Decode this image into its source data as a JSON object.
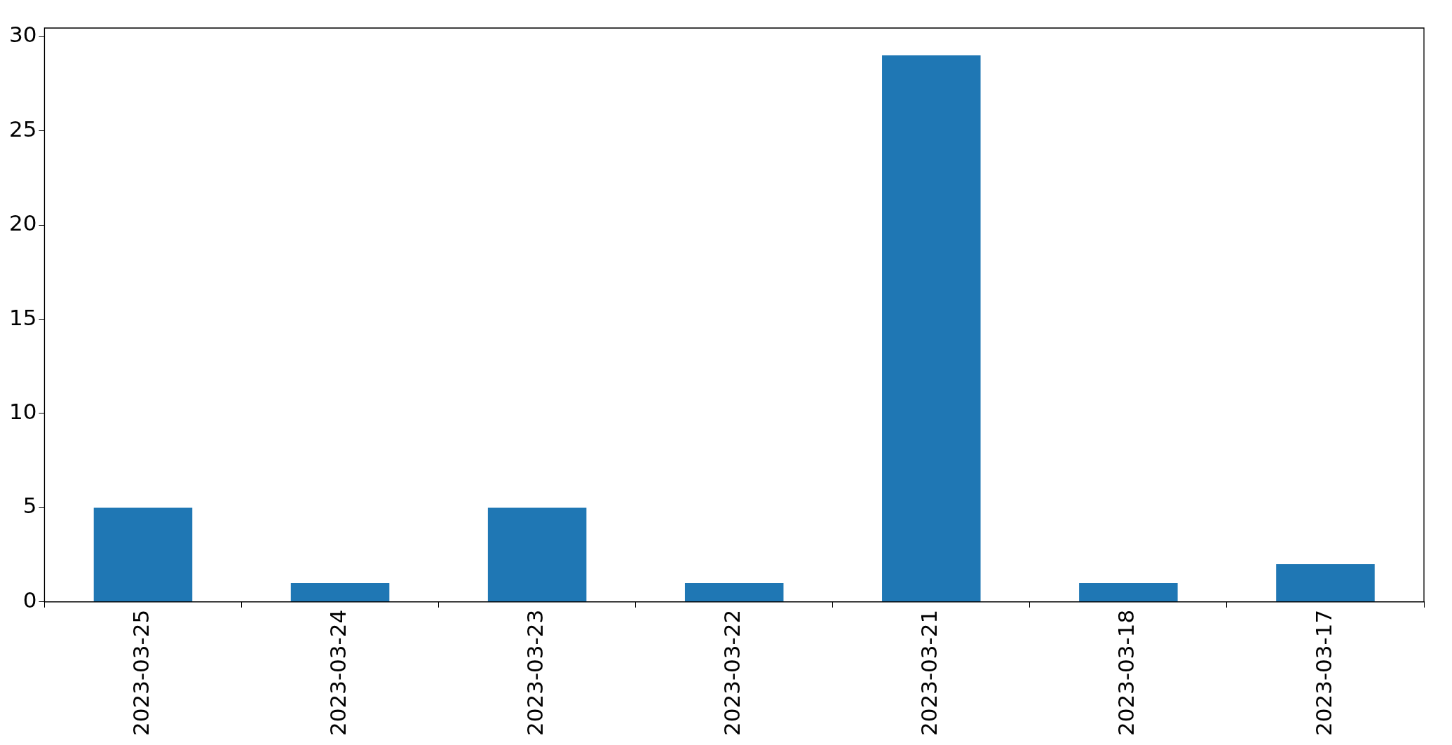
{
  "chart_data": {
    "type": "bar",
    "categories": [
      "2023-03-25",
      "2023-03-24",
      "2023-03-23",
      "2023-03-22",
      "2023-03-21",
      "2023-03-18",
      "2023-03-17"
    ],
    "values": [
      5,
      1,
      5,
      1,
      29,
      1,
      2
    ],
    "color": "#1f77b4",
    "ylim": [
      0,
      30.45
    ],
    "yticks": [
      0,
      5,
      10,
      15,
      20,
      25,
      30
    ]
  }
}
